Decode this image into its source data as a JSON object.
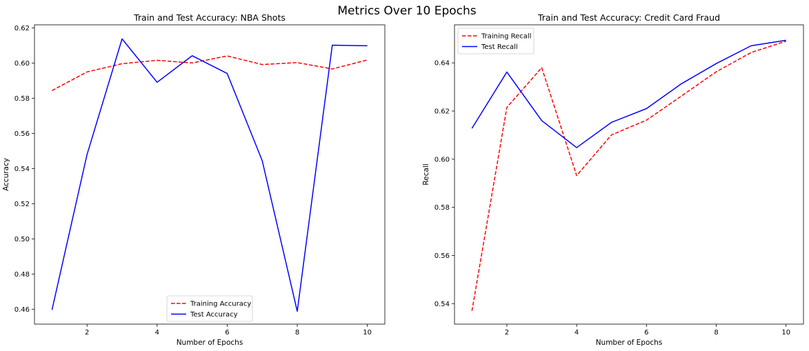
{
  "figure": {
    "title": "Metrics Over 10 Epochs"
  },
  "chart_data": [
    {
      "type": "line",
      "title": "Train and Test Accuracy: NBA Shots",
      "xlabel": "Number of Epochs",
      "ylabel": "Accuracy",
      "x": [
        1,
        2,
        3,
        4,
        5,
        6,
        7,
        8,
        9,
        10
      ],
      "xlim": [
        0.5,
        10.5
      ],
      "ylim": [
        0.4515,
        0.6218
      ],
      "xticks": [
        2,
        4,
        6,
        8,
        10
      ],
      "yticks": [
        0.46,
        0.48,
        0.5,
        0.52,
        0.54,
        0.56,
        0.58,
        0.6,
        0.62
      ],
      "ytick_labels": [
        "0.46",
        "0.48",
        "0.50",
        "0.52",
        "0.54",
        "0.56",
        "0.58",
        "0.60",
        "0.62"
      ],
      "xtick_labels": [
        "2",
        "4",
        "6",
        "8",
        "10"
      ],
      "grid": false,
      "legend_position": "bottom-center",
      "series": [
        {
          "name": "Training Accuracy",
          "color": "#ff0000",
          "style": "dashed",
          "values": [
            0.5844,
            0.595,
            0.5997,
            0.6016,
            0.6001,
            0.6041,
            0.5992,
            0.6003,
            0.5967,
            0.6018
          ]
        },
        {
          "name": "Test Accuracy",
          "color": "#0000ff",
          "style": "solid",
          "values": [
            0.4596,
            0.548,
            0.6138,
            0.5891,
            0.6042,
            0.5941,
            0.5445,
            0.4588,
            0.6102,
            0.6099
          ]
        }
      ]
    },
    {
      "type": "line",
      "title": "Train and Test Accuracy: Credit Card Fraud",
      "xlabel": "Number of Epochs",
      "ylabel": "Recall",
      "x": [
        1,
        2,
        3,
        4,
        5,
        6,
        7,
        8,
        9,
        10
      ],
      "xlim": [
        0.5,
        10.5
      ],
      "ylim": [
        0.5315,
        0.6558
      ],
      "xticks": [
        2,
        4,
        6,
        8,
        10
      ],
      "yticks": [
        0.54,
        0.56,
        0.58,
        0.6,
        0.62,
        0.64
      ],
      "ytick_labels": [
        "0.54",
        "0.56",
        "0.58",
        "0.60",
        "0.62",
        "0.64"
      ],
      "xtick_labels": [
        "2",
        "4",
        "6",
        "8",
        "10"
      ],
      "grid": false,
      "legend_position": "top-left",
      "series": [
        {
          "name": "Training Recall",
          "color": "#ff0000",
          "style": "dashed",
          "values": [
            0.537,
            0.6215,
            0.638,
            0.5932,
            0.6101,
            0.6162,
            0.6262,
            0.6363,
            0.6443,
            0.649
          ]
        },
        {
          "name": "Test Recall",
          "color": "#0000ff",
          "style": "solid",
          "values": [
            0.6128,
            0.6362,
            0.616,
            0.6048,
            0.6153,
            0.621,
            0.6313,
            0.6397,
            0.6471,
            0.6494
          ]
        }
      ]
    }
  ]
}
